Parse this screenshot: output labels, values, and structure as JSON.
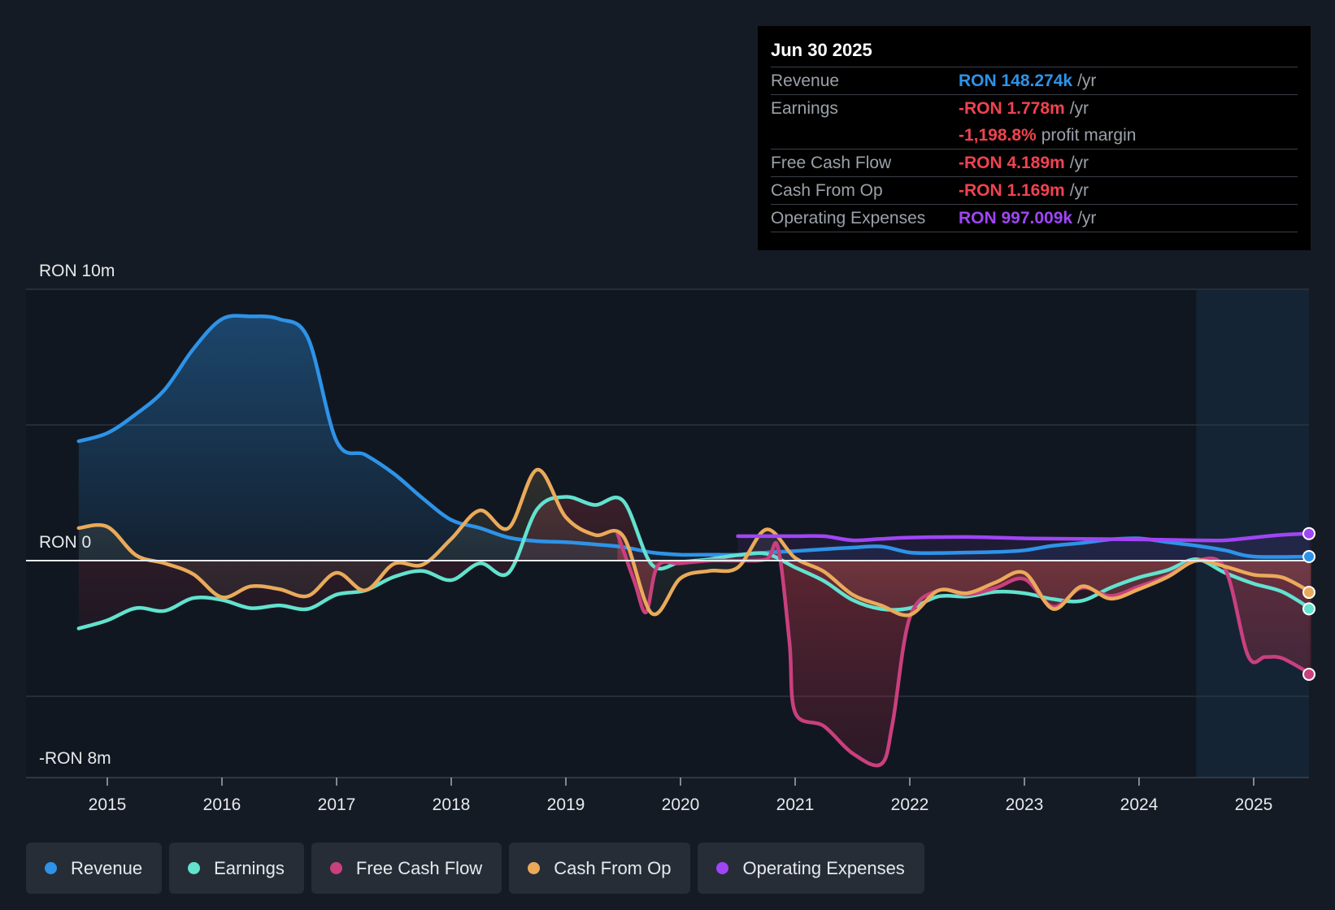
{
  "tooltip": {
    "date": "Jun 30 2025",
    "rows": [
      {
        "label": "Revenue",
        "value": "RON 148.274k",
        "unit": "/yr",
        "color": "#2e93e8"
      },
      {
        "label": "Earnings",
        "value": "-RON 1.778m",
        "unit": "/yr",
        "color": "#f0434f"
      },
      {
        "label": "",
        "value": "-1,198.8%",
        "unit": "profit margin",
        "color": "#f0434f"
      },
      {
        "label": "Free Cash Flow",
        "value": "-RON 4.189m",
        "unit": "/yr",
        "color": "#f0434f"
      },
      {
        "label": "Cash From Op",
        "value": "-RON 1.169m",
        "unit": "/yr",
        "color": "#f0434f"
      },
      {
        "label": "Operating Expenses",
        "value": "RON 997.009k",
        "unit": "/yr",
        "color": "#a045f5"
      }
    ]
  },
  "legend": [
    {
      "label": "Revenue",
      "color": "#2e93e8"
    },
    {
      "label": "Earnings",
      "color": "#62e2cf"
    },
    {
      "label": "Free Cash Flow",
      "color": "#c9407e"
    },
    {
      "label": "Cash From Op",
      "color": "#eaaa5a"
    },
    {
      "label": "Operating Expenses",
      "color": "#a045f5"
    }
  ],
  "chart_data": {
    "type": "area",
    "title": "",
    "y_unit_label_top": "RON 10m",
    "y_unit_label_zero": "RON 0",
    "y_unit_label_bottom": "-RON 8m",
    "ylim": [
      -8,
      10
    ],
    "xlim": [
      2014.2,
      2025.5
    ],
    "x_ticks": [
      2015,
      2016,
      2017,
      2018,
      2019,
      2020,
      2021,
      2022,
      2023,
      2024,
      2025
    ],
    "forecast_start": 2024.5,
    "series": [
      {
        "name": "Revenue",
        "color": "#2e93e8",
        "points": [
          [
            2014.75,
            4.4
          ],
          [
            2015.0,
            4.7
          ],
          [
            2015.25,
            5.4
          ],
          [
            2015.5,
            6.3
          ],
          [
            2015.75,
            7.8
          ],
          [
            2016.0,
            8.9
          ],
          [
            2016.25,
            9.0
          ],
          [
            2016.5,
            8.9
          ],
          [
            2016.75,
            8.2
          ],
          [
            2017.0,
            4.4
          ],
          [
            2017.25,
            3.9
          ],
          [
            2017.5,
            3.2
          ],
          [
            2017.75,
            2.3
          ],
          [
            2018.0,
            1.5
          ],
          [
            2018.25,
            1.2
          ],
          [
            2018.5,
            0.85
          ],
          [
            2018.75,
            0.72
          ],
          [
            2019.0,
            0.68
          ],
          [
            2019.25,
            0.6
          ],
          [
            2019.5,
            0.5
          ],
          [
            2019.75,
            0.3
          ],
          [
            2020.0,
            0.22
          ],
          [
            2020.25,
            0.22
          ],
          [
            2020.5,
            0.22
          ],
          [
            2020.75,
            0.3
          ],
          [
            2021.0,
            0.35
          ],
          [
            2021.25,
            0.42
          ],
          [
            2021.5,
            0.48
          ],
          [
            2021.75,
            0.52
          ],
          [
            2022.0,
            0.3
          ],
          [
            2022.25,
            0.28
          ],
          [
            2022.5,
            0.3
          ],
          [
            2022.75,
            0.32
          ],
          [
            2023.0,
            0.38
          ],
          [
            2023.25,
            0.55
          ],
          [
            2023.5,
            0.65
          ],
          [
            2023.75,
            0.78
          ],
          [
            2024.0,
            0.82
          ],
          [
            2024.25,
            0.68
          ],
          [
            2024.5,
            0.55
          ],
          [
            2024.75,
            0.38
          ],
          [
            2025.0,
            0.15
          ],
          [
            2025.5,
            0.15
          ]
        ]
      },
      {
        "name": "Earnings",
        "color": "#62e2cf",
        "points": [
          [
            2014.75,
            -2.5
          ],
          [
            2015.0,
            -2.2
          ],
          [
            2015.25,
            -1.75
          ],
          [
            2015.5,
            -1.85
          ],
          [
            2015.75,
            -1.38
          ],
          [
            2016.0,
            -1.45
          ],
          [
            2016.25,
            -1.75
          ],
          [
            2016.5,
            -1.65
          ],
          [
            2016.75,
            -1.78
          ],
          [
            2017.0,
            -1.25
          ],
          [
            2017.25,
            -1.1
          ],
          [
            2017.5,
            -0.6
          ],
          [
            2017.75,
            -0.38
          ],
          [
            2018.0,
            -0.72
          ],
          [
            2018.25,
            -0.1
          ],
          [
            2018.5,
            -0.45
          ],
          [
            2018.75,
            1.9
          ],
          [
            2019.0,
            2.35
          ],
          [
            2019.25,
            2.05
          ],
          [
            2019.5,
            2.2
          ],
          [
            2019.75,
            -0.15
          ],
          [
            2020.0,
            -0.05
          ],
          [
            2020.25,
            0.05
          ],
          [
            2020.5,
            0.2
          ],
          [
            2020.75,
            0.25
          ],
          [
            2021.0,
            -0.25
          ],
          [
            2021.25,
            -0.75
          ],
          [
            2021.5,
            -1.45
          ],
          [
            2021.75,
            -1.78
          ],
          [
            2022.0,
            -1.75
          ],
          [
            2022.25,
            -1.32
          ],
          [
            2022.5,
            -1.32
          ],
          [
            2022.75,
            -1.15
          ],
          [
            2023.0,
            -1.2
          ],
          [
            2023.25,
            -1.42
          ],
          [
            2023.5,
            -1.48
          ],
          [
            2023.75,
            -1.0
          ],
          [
            2024.0,
            -0.62
          ],
          [
            2024.25,
            -0.35
          ],
          [
            2024.5,
            0.05
          ],
          [
            2024.75,
            -0.45
          ],
          [
            2025.0,
            -0.85
          ],
          [
            2025.25,
            -1.15
          ],
          [
            2025.5,
            -1.778
          ]
        ]
      },
      {
        "name": "Free Cash Flow",
        "color": "#c9407e",
        "points": [
          [
            2019.45,
            1.0
          ],
          [
            2019.6,
            -0.8
          ],
          [
            2019.7,
            -1.9
          ],
          [
            2019.8,
            -0.2
          ],
          [
            2020.0,
            -0.1
          ],
          [
            2020.25,
            0.0
          ],
          [
            2020.5,
            0.0
          ],
          [
            2020.75,
            0.05
          ],
          [
            2020.85,
            0.5
          ],
          [
            2020.95,
            -3.0
          ],
          [
            2021.0,
            -5.6
          ],
          [
            2021.25,
            -6.1
          ],
          [
            2021.5,
            -7.1
          ],
          [
            2021.75,
            -7.5
          ],
          [
            2021.85,
            -6.0
          ],
          [
            2022.0,
            -2.1
          ],
          [
            2022.25,
            -1.1
          ],
          [
            2022.5,
            -1.25
          ],
          [
            2022.75,
            -1.0
          ],
          [
            2023.0,
            -0.68
          ],
          [
            2023.25,
            -1.7
          ],
          [
            2023.5,
            -1.0
          ],
          [
            2023.75,
            -1.3
          ],
          [
            2024.0,
            -0.95
          ],
          [
            2024.25,
            -0.55
          ],
          [
            2024.5,
            0.0
          ],
          [
            2024.75,
            -0.3
          ],
          [
            2024.95,
            -3.5
          ],
          [
            2025.1,
            -3.55
          ],
          [
            2025.25,
            -3.6
          ],
          [
            2025.5,
            -4.189
          ]
        ]
      },
      {
        "name": "Cash From Op",
        "color": "#eaaa5a",
        "points": [
          [
            2014.75,
            1.2
          ],
          [
            2015.0,
            1.25
          ],
          [
            2015.25,
            0.2
          ],
          [
            2015.5,
            -0.1
          ],
          [
            2015.75,
            -0.5
          ],
          [
            2016.0,
            -1.35
          ],
          [
            2016.25,
            -0.95
          ],
          [
            2016.5,
            -1.05
          ],
          [
            2016.75,
            -1.3
          ],
          [
            2017.0,
            -0.45
          ],
          [
            2017.25,
            -1.1
          ],
          [
            2017.5,
            -0.12
          ],
          [
            2017.75,
            -0.15
          ],
          [
            2018.0,
            0.8
          ],
          [
            2018.25,
            1.85
          ],
          [
            2018.5,
            1.2
          ],
          [
            2018.75,
            3.35
          ],
          [
            2019.0,
            1.6
          ],
          [
            2019.25,
            0.95
          ],
          [
            2019.5,
            0.9
          ],
          [
            2019.75,
            -1.95
          ],
          [
            2020.0,
            -0.65
          ],
          [
            2020.25,
            -0.38
          ],
          [
            2020.5,
            -0.25
          ],
          [
            2020.75,
            1.15
          ],
          [
            2021.0,
            0.1
          ],
          [
            2021.25,
            -0.4
          ],
          [
            2021.5,
            -1.25
          ],
          [
            2021.75,
            -1.65
          ],
          [
            2022.0,
            -2.0
          ],
          [
            2022.25,
            -1.1
          ],
          [
            2022.5,
            -1.2
          ],
          [
            2022.75,
            -0.8
          ],
          [
            2023.0,
            -0.45
          ],
          [
            2023.25,
            -1.78
          ],
          [
            2023.5,
            -0.95
          ],
          [
            2023.75,
            -1.4
          ],
          [
            2024.0,
            -1.05
          ],
          [
            2024.25,
            -0.6
          ],
          [
            2024.5,
            0.0
          ],
          [
            2024.75,
            -0.22
          ],
          [
            2025.0,
            -0.52
          ],
          [
            2025.25,
            -0.62
          ],
          [
            2025.5,
            -1.169
          ]
        ]
      },
      {
        "name": "Operating Expenses",
        "color": "#a045f5",
        "points": [
          [
            2020.5,
            0.9
          ],
          [
            2020.75,
            0.9
          ],
          [
            2021.0,
            0.9
          ],
          [
            2021.25,
            0.9
          ],
          [
            2021.5,
            0.75
          ],
          [
            2021.75,
            0.8
          ],
          [
            2022.0,
            0.85
          ],
          [
            2022.5,
            0.87
          ],
          [
            2023.0,
            0.82
          ],
          [
            2023.5,
            0.8
          ],
          [
            2024.0,
            0.78
          ],
          [
            2024.5,
            0.75
          ],
          [
            2024.75,
            0.75
          ],
          [
            2025.0,
            0.85
          ],
          [
            2025.25,
            0.95
          ],
          [
            2025.5,
            0.997
          ]
        ]
      }
    ]
  }
}
